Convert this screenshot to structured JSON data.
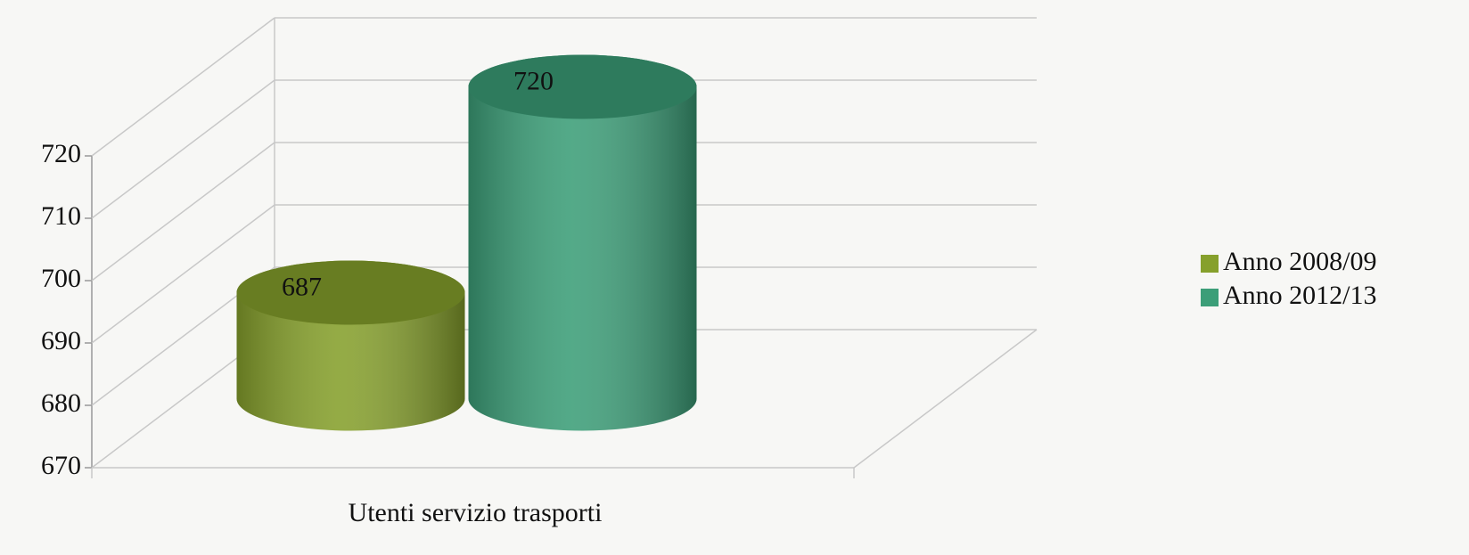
{
  "chart_data": {
    "type": "bar",
    "style": "3d-cylinder",
    "categories": [
      "Utenti servizio trasporti"
    ],
    "series": [
      {
        "name": "Anno 2008/09",
        "color": "#86a02c",
        "values": [
          687
        ]
      },
      {
        "name": "Anno 2012/13",
        "color": "#3c9e78",
        "values": [
          720
        ]
      }
    ],
    "ylim": [
      670,
      720
    ],
    "yticks": [
      670,
      680,
      690,
      700,
      710,
      720
    ],
    "grid": true,
    "legend": "right"
  }
}
